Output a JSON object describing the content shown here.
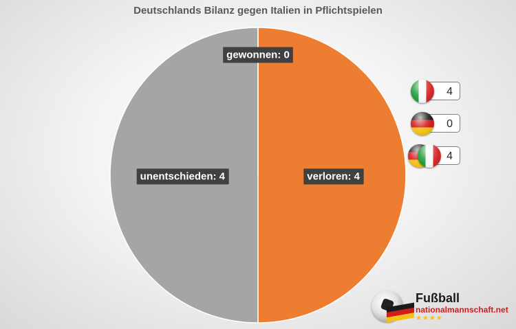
{
  "chart_data": {
    "type": "pie",
    "title": "Deutschlands Bilanz gegen Italien in Pflichtspielen",
    "slices": [
      {
        "label": "gewonnen",
        "value": 0,
        "display": "gewonnen: 0",
        "color": "#5b9bd5"
      },
      {
        "label": "verloren",
        "value": 4,
        "display": "verloren: 4",
        "color": "#ed7d31"
      },
      {
        "label": "unentschieden",
        "value": 4,
        "display": "unentschieden: 4",
        "color": "#a5a5a5"
      }
    ],
    "legend": [
      {
        "icon": "italy-flag-icon",
        "value": "4"
      },
      {
        "icon": "germany-flag-icon",
        "value": "0"
      },
      {
        "icon": "germany-italy-flags-icon",
        "value": "4"
      }
    ],
    "legend_position": "right"
  },
  "logo": {
    "title": "Fußball",
    "domain": "nationalmannschaft.net",
    "stars": "★★★★"
  }
}
